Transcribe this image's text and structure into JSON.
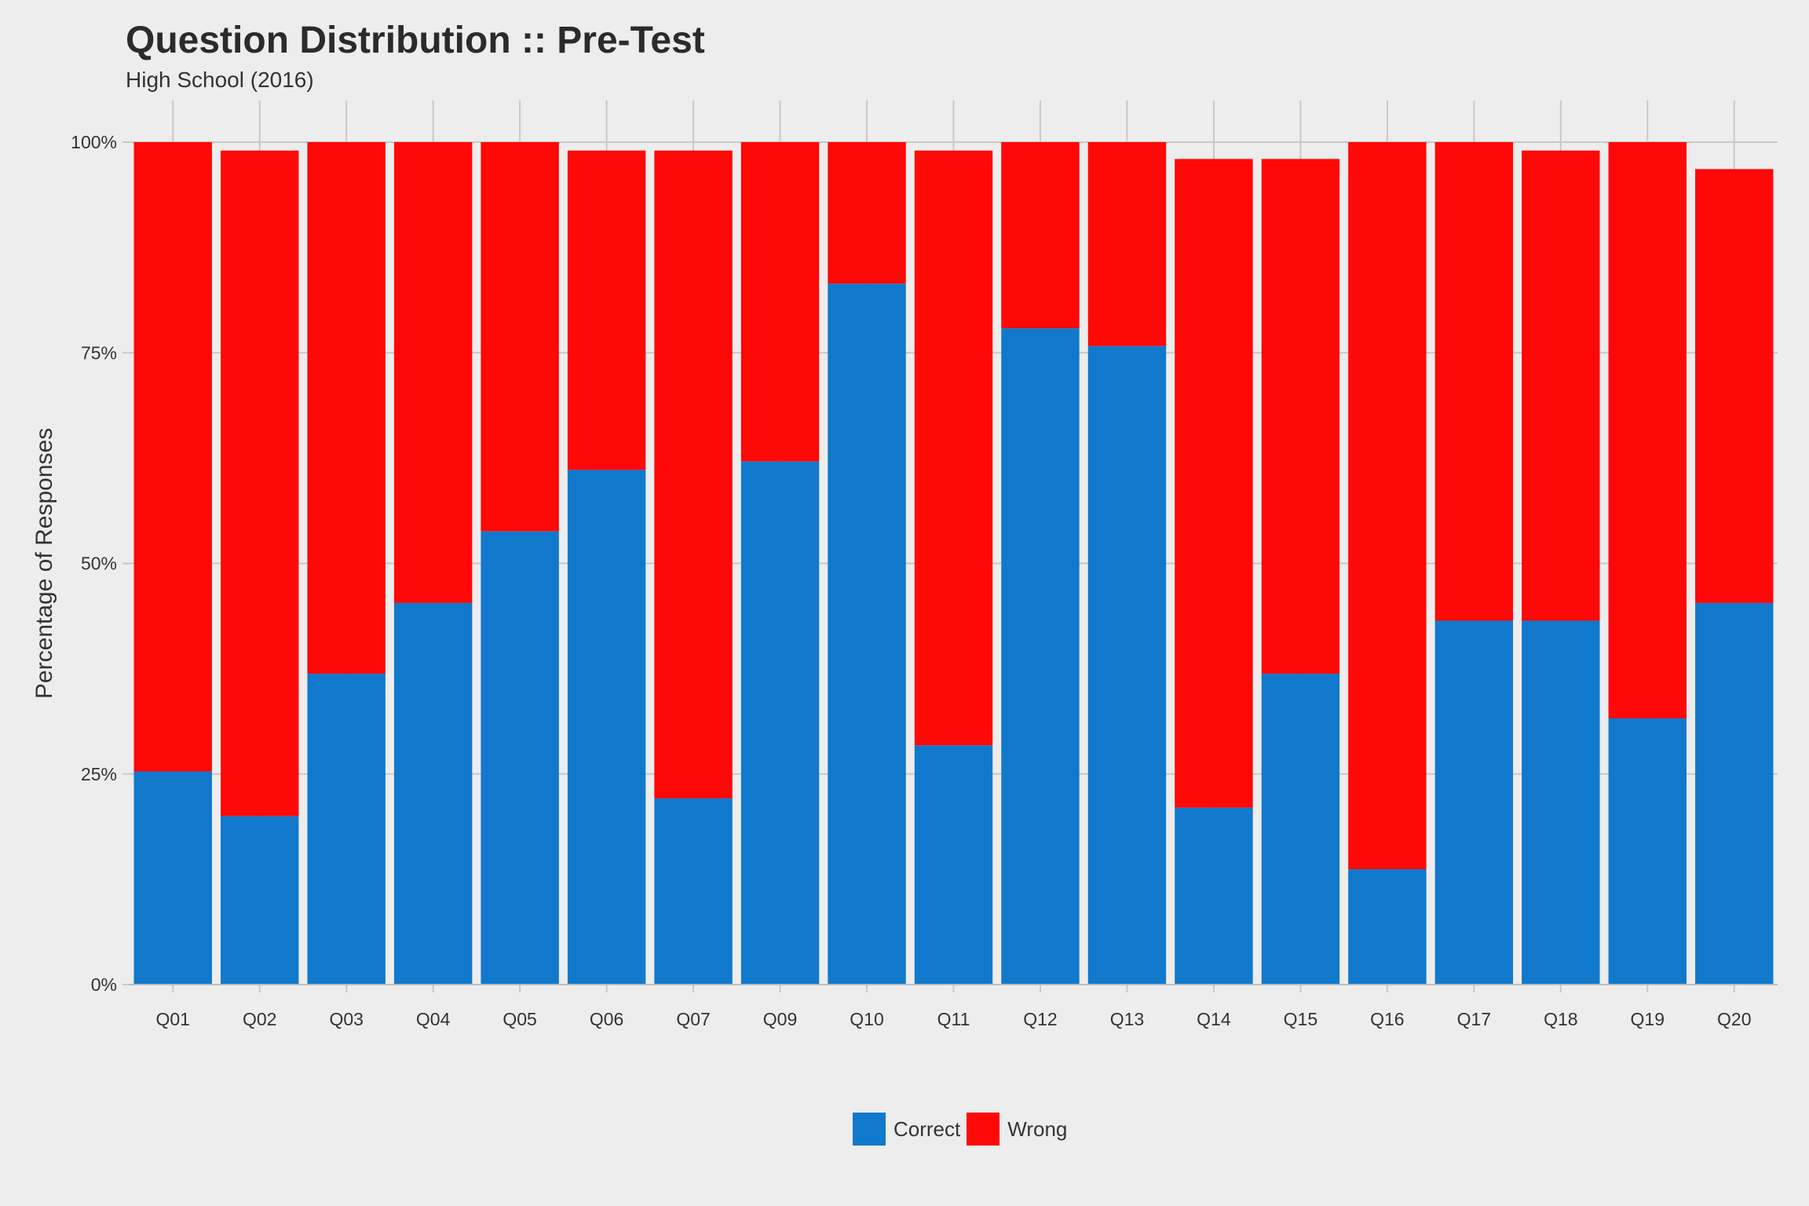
{
  "chart_data": {
    "type": "bar",
    "stacked": true,
    "title": "Question Distribution :: Pre-Test",
    "subtitle": "High School (2016)",
    "xlabel": "",
    "ylabel": "Percentage of Responses",
    "ylim": [
      0,
      100
    ],
    "yticks": [
      "0%",
      "25%",
      "50%",
      "75%",
      "100%"
    ],
    "ytick_values": [
      0,
      25,
      50,
      75,
      100
    ],
    "categories": [
      "Q01",
      "Q02",
      "Q03",
      "Q04",
      "Q05",
      "Q06",
      "Q07",
      "Q09",
      "Q10",
      "Q11",
      "Q12",
      "Q13",
      "Q14",
      "Q15",
      "Q16",
      "Q17",
      "Q18",
      "Q19",
      "Q20"
    ],
    "series": [
      {
        "name": "Correct",
        "color": "#1179CC",
        "values": [
          25.3,
          20.0,
          36.9,
          45.3,
          53.8,
          61.1,
          22.1,
          62.1,
          83.2,
          28.4,
          77.9,
          75.8,
          21.0,
          36.9,
          13.7,
          43.2,
          43.2,
          31.6,
          45.3
        ]
      },
      {
        "name": "Wrong",
        "color": "#FF0808",
        "values": [
          74.7,
          79.0,
          63.1,
          54.7,
          46.2,
          37.9,
          76.9,
          37.9,
          16.8,
          70.6,
          22.1,
          24.2,
          77.0,
          61.1,
          86.3,
          56.8,
          55.8,
          68.4,
          51.5
        ]
      }
    ],
    "grid": true,
    "legend_position": "bottom"
  }
}
